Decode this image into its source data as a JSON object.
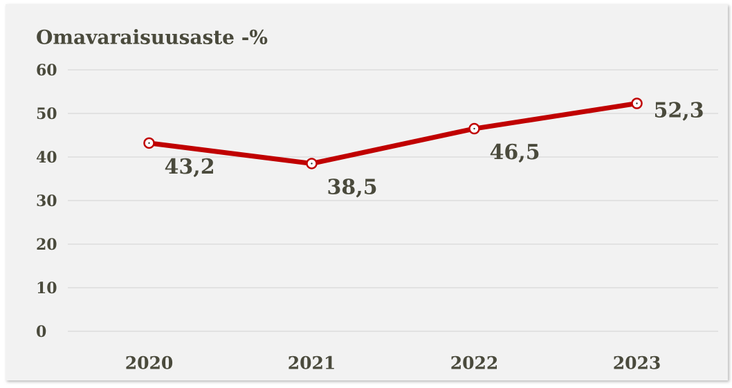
{
  "chart_data": {
    "type": "line",
    "title": "Omavaraisuusaste -%",
    "categories": [
      "2020",
      "2021",
      "2022",
      "2023"
    ],
    "series": [
      {
        "name": "Omavaraisuusaste -%",
        "color": "#c00000",
        "values": [
          43.2,
          38.5,
          46.5,
          52.3
        ],
        "value_labels": [
          "43,2",
          "38,5",
          "46,5",
          "52,3"
        ]
      }
    ],
    "ylim": [
      0,
      60
    ],
    "yticks": [
      0,
      10,
      20,
      30,
      40,
      50,
      60
    ],
    "grid": true,
    "legend": false
  }
}
